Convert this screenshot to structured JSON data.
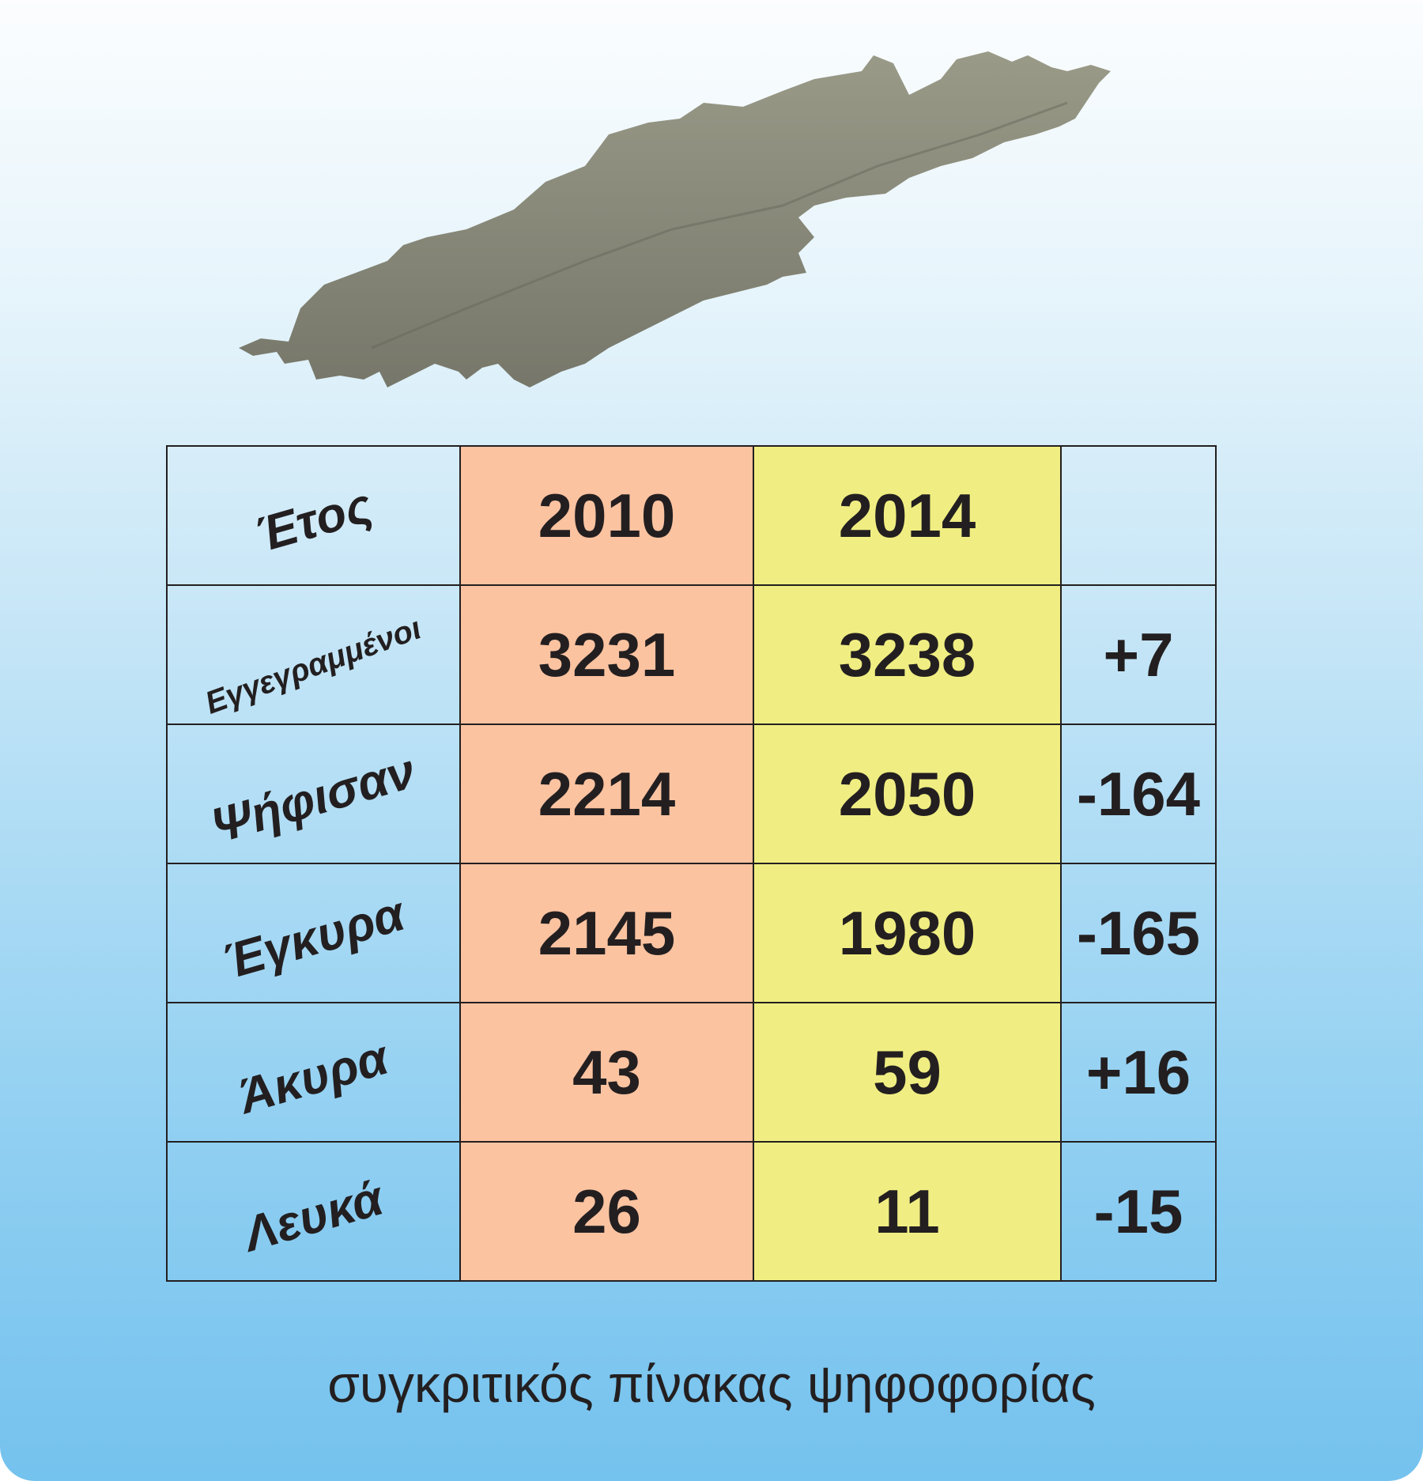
{
  "map": {
    "icon": "island-silhouette",
    "color": "#8a8a78"
  },
  "table": {
    "header": {
      "label": "Έτος",
      "y2010": "2010",
      "y2014": "2014",
      "diff": ""
    },
    "rows": [
      {
        "label": "Εγγεγραμμένοι",
        "y2010": "3231",
        "y2014": "3238",
        "diff": "+7"
      },
      {
        "label": "Ψήφισαν",
        "y2010": "2214",
        "y2014": "2050",
        "diff": "-164"
      },
      {
        "label": "Έγκυρα",
        "y2010": "2145",
        "y2014": "1980",
        "diff": "-165"
      },
      {
        "label": "Άκυρα",
        "y2010": "43",
        "y2014": "59",
        "diff": "+16"
      },
      {
        "label": "Λευκά",
        "y2010": "26",
        "y2014": "11",
        "diff": "-15"
      }
    ],
    "colors": {
      "col2010": "#fcc3a1",
      "col2014": "#f0ee82"
    }
  },
  "caption": "συγκριτικός πίνακας ψηφοφορίας"
}
